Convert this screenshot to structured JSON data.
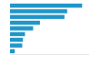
{
  "chart_data": {
    "type": "bar",
    "orientation": "horizontal",
    "categories": [
      null,
      null,
      null,
      null,
      null,
      null,
      null,
      null,
      null
    ],
    "values": [
      106,
      84,
      80,
      44,
      34,
      22,
      19,
      18,
      7
    ],
    "color": "#2196c8",
    "xlim": [
      0,
      115
    ],
    "grid": false,
    "tick_labels": false
  }
}
